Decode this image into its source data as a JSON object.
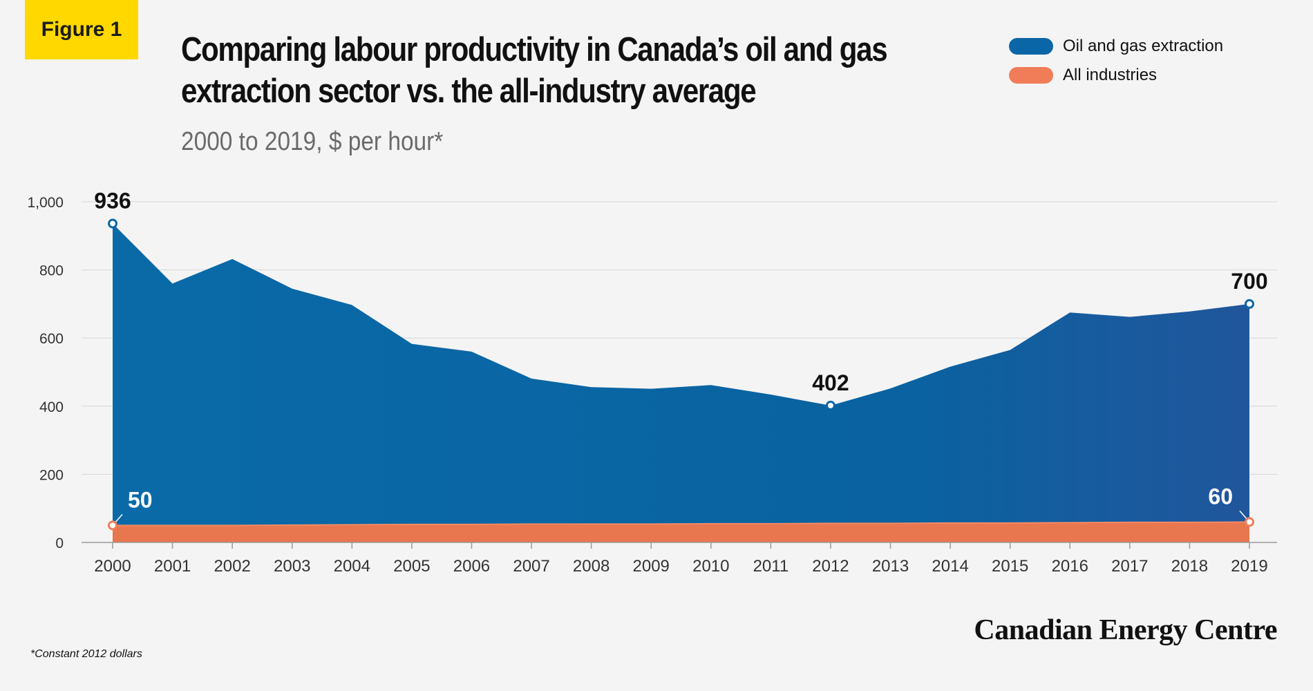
{
  "figure_label": "Figure 1",
  "title_line1": "Comparing labour productivity in Canada’s oil and gas",
  "title_line2": "extraction sector vs. the all-industry average",
  "subtitle": "2000 to 2019, $ per hour*",
  "footnote": "*Constant 2012 dollars",
  "brand": "Canadian Energy Centre",
  "colors": {
    "oil_gas": "#0a66a6",
    "all_industries": "#f07d58",
    "badge": "#ffd800"
  },
  "chart_data": {
    "type": "area",
    "title": "Comparing labour productivity in Canada’s oil and gas extraction sector vs. the all-industry average",
    "subtitle": "2000 to 2019, $ per hour*",
    "x": [
      "2000",
      "2001",
      "2002",
      "2003",
      "2004",
      "2005",
      "2006",
      "2007",
      "2008",
      "2009",
      "2010",
      "2011",
      "2012",
      "2013",
      "2014",
      "2015",
      "2016",
      "2017",
      "2018",
      "2019"
    ],
    "ylim": [
      0,
      1000
    ],
    "yticks": [
      "0",
      "200",
      "400",
      "600",
      "800",
      "1,000"
    ],
    "grid": true,
    "legend_position": "top-right",
    "series": [
      {
        "name": "Oil and gas extraction",
        "color": "#0a66a6",
        "values": [
          936,
          760,
          832,
          745,
          697,
          583,
          560,
          481,
          456,
          451,
          462,
          434,
          402,
          452,
          516,
          565,
          675,
          662,
          678,
          700
        ]
      },
      {
        "name": "All industries",
        "color": "#f07d58",
        "values": [
          50,
          50,
          50,
          51,
          52,
          53,
          53,
          54,
          54,
          54,
          55,
          55,
          56,
          56,
          57,
          57,
          58,
          59,
          59,
          60
        ]
      }
    ],
    "annotations": [
      {
        "series": 0,
        "year": "2000",
        "label": "936"
      },
      {
        "series": 0,
        "year": "2012",
        "label": "402"
      },
      {
        "series": 0,
        "year": "2019",
        "label": "700"
      },
      {
        "series": 1,
        "year": "2000",
        "label": "50"
      },
      {
        "series": 1,
        "year": "2019",
        "label": "60"
      }
    ]
  }
}
